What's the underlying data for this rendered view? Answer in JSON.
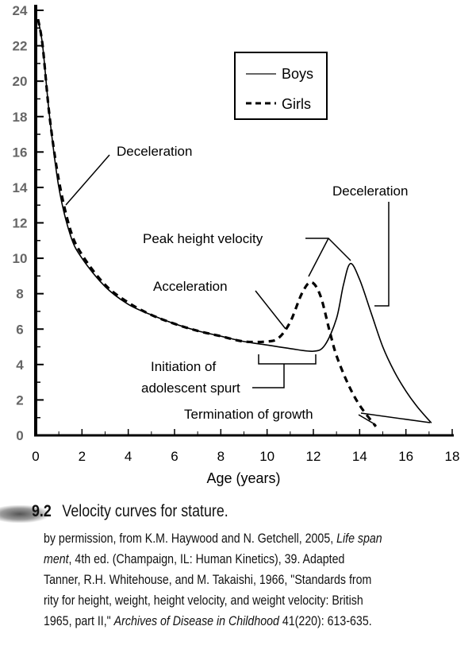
{
  "chart_data": {
    "type": "line",
    "title": "",
    "xlabel": "Age (years)",
    "ylabel": "",
    "xlim": [
      0,
      18
    ],
    "ylim": [
      0,
      24
    ],
    "x_ticks": [
      "0",
      "2",
      "4",
      "6",
      "8",
      "10",
      "12",
      "14",
      "16",
      "18"
    ],
    "y_ticks": [
      "0",
      "2",
      "4",
      "6",
      "8",
      "10",
      "12",
      "14",
      "16",
      "18",
      "20",
      "22",
      "24"
    ],
    "grid": false,
    "legend_position": "top-right",
    "series": [
      {
        "name": "Boys",
        "style": "solid",
        "x": [
          0.1,
          0.3,
          0.6,
          1.0,
          1.5,
          2,
          3,
          4,
          5,
          6,
          7,
          8,
          9,
          10,
          11,
          12,
          12.5,
          13,
          13.3,
          13.6,
          14,
          14.5,
          15,
          15.5,
          16,
          16.5,
          17.1
        ],
        "y": [
          23.5,
          22,
          18,
          14,
          11.3,
          10.0,
          8.4,
          7.4,
          6.8,
          6.3,
          5.9,
          5.6,
          5.3,
          5.1,
          4.9,
          4.75,
          5.1,
          6.6,
          8.5,
          9.7,
          8.8,
          6.9,
          5.0,
          3.6,
          2.5,
          1.6,
          0.7
        ]
      },
      {
        "name": "Girls",
        "style": "dashed",
        "x": [
          0.1,
          0.3,
          0.6,
          1.0,
          1.5,
          2,
          3,
          4,
          5,
          6,
          7,
          8,
          9,
          10,
          10.5,
          11,
          11.5,
          11.9,
          12.3,
          12.7,
          13,
          13.5,
          14,
          14.7
        ],
        "y": [
          23.5,
          22,
          18,
          14.4,
          11.6,
          10.2,
          8.5,
          7.5,
          6.8,
          6.3,
          5.9,
          5.6,
          5.3,
          5.3,
          5.5,
          6.4,
          8.0,
          8.65,
          7.9,
          5.9,
          4.5,
          2.9,
          1.7,
          0.5
        ]
      }
    ],
    "annotations": {
      "decel_early": "Deceleration",
      "decel_late": "Deceleration",
      "peak": "Peak height velocity",
      "accel": "Acceleration",
      "initiation_1": "Initiation of",
      "initiation_2": "adolescent spurt",
      "termination": "Termination of growth"
    }
  },
  "caption": {
    "figure_number": "9.2",
    "title": "Velocity curves for stature.",
    "credit_lines": [
      "by permission, from K.M. Haywood and N. Getchell, 2005, ",
      "Life span",
      ", 4th ed. (Champaign, IL: Human Kinetics), 39. Adapted",
      "ment",
      "Tanner, R.H. Whitehouse, and M. Takaishi, 1966, \"Standards from",
      "rity for height, weight, height velocity, and weight velocity: British",
      "1965, part II,\" ",
      "Archives of Disease in Childhood",
      " 41(220): 613-635."
    ]
  }
}
